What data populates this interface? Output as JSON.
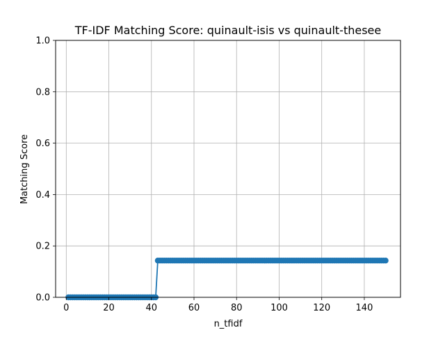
{
  "chart_data": {
    "type": "line",
    "title": "TF-IDF Matching Score: quinault-isis vs quinault-thesee",
    "xlabel": "n_tfidf",
    "ylabel": "Matching Score",
    "xlim": [
      -5,
      157
    ],
    "ylim": [
      0,
      1.0
    ],
    "x_ticks": [
      0,
      20,
      40,
      60,
      80,
      100,
      120,
      140
    ],
    "x_tick_labels": [
      "0",
      "20",
      "40",
      "60",
      "80",
      "100",
      "120",
      "140"
    ],
    "y_ticks": [
      0.0,
      0.2,
      0.4,
      0.6,
      0.8,
      1.0
    ],
    "y_tick_labels": [
      "0.0",
      "0.2",
      "0.4",
      "0.6",
      "0.8",
      "1.0"
    ],
    "grid": true,
    "marker": "circle",
    "series": [
      {
        "color": "#1f77b4",
        "segments": [
          {
            "x_start": 1,
            "x_end": 42,
            "y": 0.0
          },
          {
            "x_start": 43,
            "x_end": 150,
            "y": 0.143
          }
        ]
      }
    ]
  }
}
